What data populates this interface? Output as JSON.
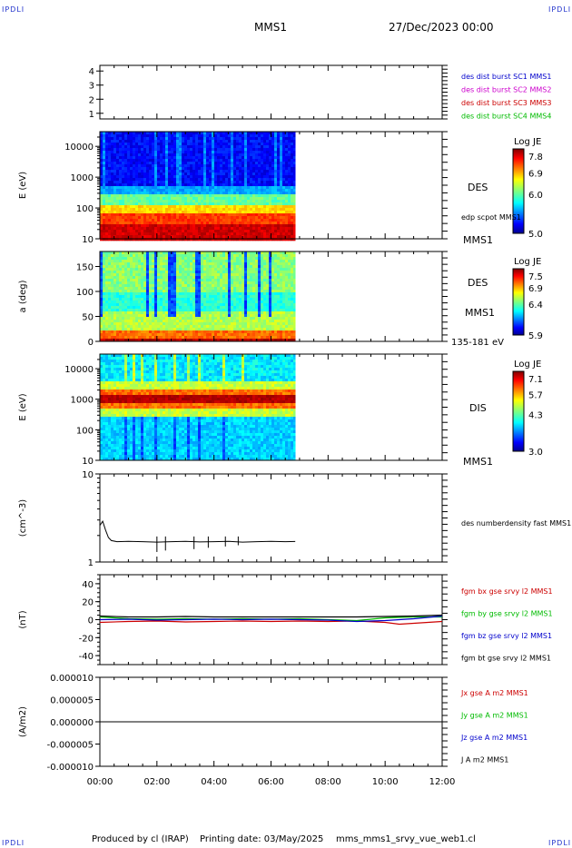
{
  "header": {
    "corner_label": "IPDLI",
    "spacecraft": "MMS1",
    "date": "27/Dec/2023 00:00"
  },
  "footer": {
    "produced_by": "Produced by cl (IRAP)",
    "printing_date": "Printing date: 03/May/2025",
    "file": "mms_mms1_srvy_vue_web1.cl"
  },
  "time_axis": {
    "ticks": [
      "00:00",
      "02:00",
      "04:00",
      "06:00",
      "08:00",
      "10:00",
      "12:00"
    ],
    "hours": [
      0,
      12
    ],
    "data_end_hour": 6.85
  },
  "chart_data": [
    {
      "type": "line",
      "id": "panel-config",
      "yticks": [
        "1",
        "2",
        "3",
        "4"
      ],
      "ylim": [
        0.6,
        4.4
      ],
      "legend": [
        {
          "label": "des dist burst SC1 MMS1",
          "color": "#0000cc"
        },
        {
          "label": "des dist burst SC2 MMS2",
          "color": "#cc00cc"
        },
        {
          "label": "des dist burst SC3 MMS3",
          "color": "#cc0000"
        },
        {
          "label": "des dist burst SC4 MMS4",
          "color": "#00bb00"
        }
      ]
    },
    {
      "type": "heatmap",
      "id": "panel-des-energy",
      "ylabel": "E (eV)",
      "yscale": "log",
      "ylim": [
        10,
        30000
      ],
      "yticks": [
        "10",
        "100",
        "1000",
        "10000"
      ],
      "labels": [
        "DES",
        "edp scpot MMS1",
        "MMS1"
      ],
      "colorbar": {
        "title": "Log JE",
        "ticks": [
          "7.8",
          "6.9",
          "6.0",
          "5.0"
        ],
        "range": [
          5.0,
          7.8
        ]
      }
    },
    {
      "type": "heatmap",
      "id": "panel-des-pitch",
      "ylabel": "a (deg)",
      "ylim": [
        0,
        180
      ],
      "yticks": [
        "0",
        "50",
        "100",
        "150"
      ],
      "labels": [
        "DES",
        "MMS1",
        "135-181 eV"
      ],
      "colorbar": {
        "title": "Log JE",
        "ticks": [
          "7.5",
          "6.9",
          "6.4",
          "5.9"
        ],
        "range": [
          5.9,
          7.5
        ]
      }
    },
    {
      "type": "heatmap",
      "id": "panel-dis-energy",
      "ylabel": "E (eV)",
      "yscale": "log",
      "ylim": [
        10,
        30000
      ],
      "yticks": [
        "10",
        "100",
        "1000",
        "10000"
      ],
      "labels": [
        "DIS",
        "MMS1"
      ],
      "colorbar": {
        "title": "Log JE",
        "ticks": [
          "7.1",
          "5.7",
          "4.3",
          "3.0"
        ],
        "range": [
          3.0,
          7.1
        ]
      }
    },
    {
      "type": "line",
      "id": "panel-density",
      "ylabel": "(cm^-3)",
      "yscale": "log",
      "ylim": [
        1,
        10
      ],
      "yticks": [
        "1",
        "10"
      ],
      "series": [
        {
          "name": "des numberdensity fast MMS1",
          "color": "#000000",
          "x": [
            0.0,
            0.1,
            0.2,
            0.3,
            0.4,
            0.6,
            1.0,
            1.5,
            2.0,
            2.5,
            3.0,
            3.5,
            4.0,
            4.5,
            5.0,
            5.5,
            6.0,
            6.5,
            6.85
          ],
          "y": [
            2.6,
            2.9,
            2.3,
            1.9,
            1.75,
            1.7,
            1.72,
            1.7,
            1.68,
            1.7,
            1.72,
            1.69,
            1.7,
            1.72,
            1.68,
            1.7,
            1.72,
            1.7,
            1.71
          ]
        }
      ]
    },
    {
      "type": "line",
      "id": "panel-bfield",
      "ylabel": "(nT)",
      "ylim": [
        -50,
        50
      ],
      "yticks": [
        "-40",
        "-20",
        "0",
        "20",
        "40"
      ],
      "series": [
        {
          "name": "fgm bx gse srvy l2 MMS1",
          "color": "#cc0000",
          "x": [
            0,
            1,
            2,
            3,
            4,
            5,
            6,
            7,
            8,
            9,
            10,
            10.5,
            11,
            11.5,
            12
          ],
          "y": [
            -3,
            -2,
            -1.5,
            -2.5,
            -2,
            -1.5,
            -2,
            -1.5,
            -2,
            -1.5,
            -3,
            -5,
            -4,
            -3,
            -2
          ]
        },
        {
          "name": "fgm by gse srvy l2 MMS1",
          "color": "#00bb00",
          "x": [
            0,
            1,
            2,
            3,
            4,
            5,
            6,
            7,
            8,
            9,
            10,
            11,
            12
          ],
          "y": [
            3,
            1,
            0.5,
            1,
            0.5,
            1,
            0.5,
            1,
            0,
            -1,
            2,
            3,
            3
          ]
        },
        {
          "name": "fgm bz gse srvy l2 MMS1",
          "color": "#0000cc",
          "x": [
            0,
            1,
            2,
            3,
            4,
            5,
            6,
            7,
            8,
            9,
            10,
            11,
            12
          ],
          "y": [
            0,
            0.5,
            -0.5,
            0,
            0.5,
            0,
            0.5,
            0,
            -0.5,
            -2,
            -1,
            1,
            4
          ]
        },
        {
          "name": "fgm bt gse srvy l2 MMS1",
          "color": "#000000",
          "x": [
            0,
            1,
            2,
            3,
            4,
            5,
            6,
            7,
            8,
            9,
            10,
            11,
            12
          ],
          "y": [
            4,
            3,
            3,
            3.5,
            3,
            3,
            3,
            3,
            3,
            3,
            3.5,
            4,
            5
          ]
        }
      ]
    },
    {
      "type": "line",
      "id": "panel-current",
      "ylabel": "(A/m2)",
      "ylim": [
        -1e-05,
        1e-05
      ],
      "yticks": [
        "-0.000010",
        "-0.000005",
        "0.000000",
        "0.000005",
        "0.000010"
      ],
      "series": [
        {
          "name": "Jx gse A m2 MMS1",
          "color": "#cc0000",
          "x": [
            0,
            12
          ],
          "y": [
            0,
            0
          ]
        },
        {
          "name": "Jy gse A m2 MMS1",
          "color": "#00bb00",
          "x": [
            0,
            12
          ],
          "y": [
            0,
            0
          ]
        },
        {
          "name": "Jz gse A m2 MMS1",
          "color": "#0000cc",
          "x": [
            0,
            12
          ],
          "y": [
            0,
            0
          ]
        },
        {
          "name": "J A m2 MMS1",
          "color": "#000000",
          "x": [
            0,
            12
          ],
          "y": [
            0,
            0
          ]
        }
      ]
    }
  ]
}
